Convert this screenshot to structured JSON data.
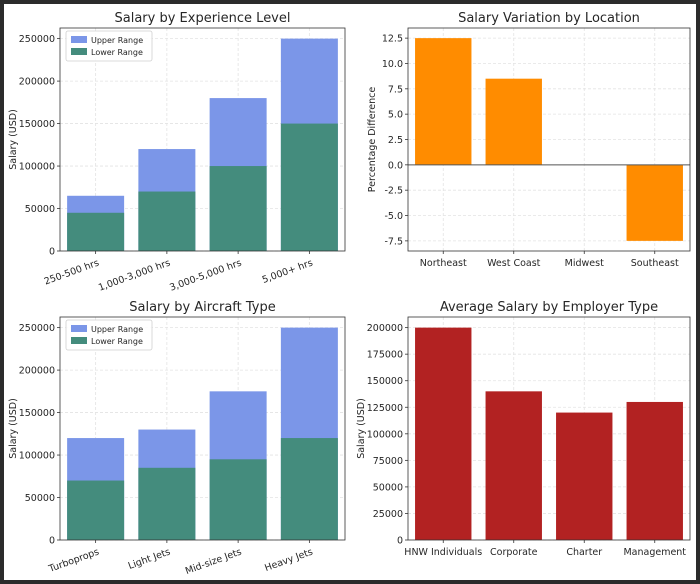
{
  "chart_data": [
    {
      "type": "bar",
      "stacked_overlay": true,
      "title": "Salary by Experience Level",
      "xlabel": "",
      "ylabel": "Salary (USD)",
      "categories": [
        "250-500 hrs",
        "1,000-3,000 hrs",
        "3,000-5,000 hrs",
        "5,000+ hrs"
      ],
      "series": [
        {
          "name": "Upper Range",
          "values": [
            65000,
            120000,
            180000,
            250000
          ],
          "color": "#7b96e8"
        },
        {
          "name": "Lower Range",
          "values": [
            45000,
            70000,
            100000,
            150000
          ],
          "color": "#448c7d"
        }
      ],
      "ylim": [
        0,
        262500
      ],
      "yticks": [
        0,
        50000,
        100000,
        150000,
        200000,
        250000
      ],
      "xtick_rotation": 20,
      "grid": true,
      "legend": "top-left"
    },
    {
      "type": "bar",
      "title": "Salary Variation by Location",
      "xlabel": "",
      "ylabel": "Percentage Difference",
      "categories": [
        "Northeast",
        "West Coast",
        "Midwest",
        "Southeast"
      ],
      "values": [
        12.5,
        8.5,
        0,
        -7.5
      ],
      "color": "#ff8c00",
      "ylim": [
        -8.5,
        13.5
      ],
      "yticks": [
        -7.5,
        -5.0,
        -2.5,
        0.0,
        2.5,
        5.0,
        7.5,
        10.0,
        12.5
      ],
      "zero_line": true,
      "grid": true
    },
    {
      "type": "bar",
      "stacked_overlay": true,
      "title": "Salary by Aircraft Type",
      "xlabel": "",
      "ylabel": "Salary (USD)",
      "categories": [
        "Turboprops",
        "Light Jets",
        "Mid-size Jets",
        "Heavy Jets"
      ],
      "series": [
        {
          "name": "Upper Range",
          "values": [
            120000,
            130000,
            175000,
            250000
          ],
          "color": "#7b96e8"
        },
        {
          "name": "Lower Range",
          "values": [
            70000,
            85000,
            95000,
            120000
          ],
          "color": "#448c7d"
        }
      ],
      "ylim": [
        0,
        262500
      ],
      "yticks": [
        0,
        50000,
        100000,
        150000,
        200000,
        250000
      ],
      "xtick_rotation": 20,
      "grid": true,
      "legend": "top-left"
    },
    {
      "type": "bar",
      "title": "Average Salary by Employer Type",
      "xlabel": "",
      "ylabel": "Salary (USD)",
      "categories": [
        "HNW Individuals",
        "Corporate",
        "Charter",
        "Management"
      ],
      "values": [
        200000,
        140000,
        120000,
        130000
      ],
      "color": "#b22222",
      "ylim": [
        0,
        210000
      ],
      "yticks": [
        0,
        25000,
        50000,
        75000,
        100000,
        125000,
        150000,
        175000,
        200000
      ],
      "grid": true
    }
  ]
}
